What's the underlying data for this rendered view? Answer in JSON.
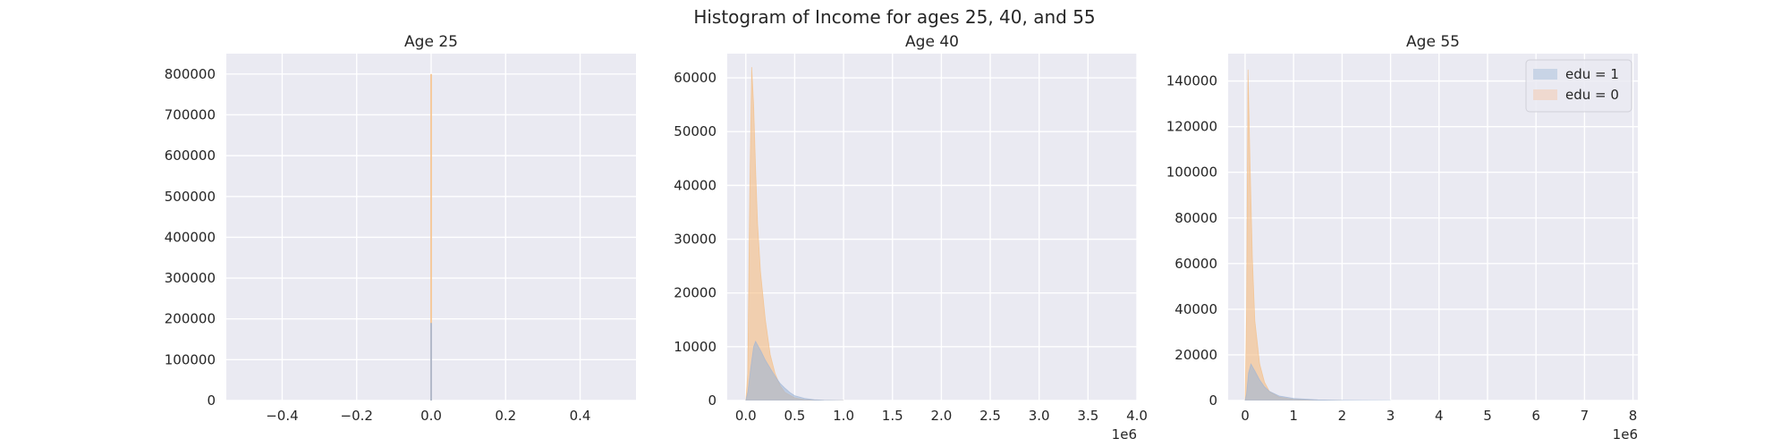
{
  "figure": {
    "title": "Histogram of Income for ages 25, 40, and 55"
  },
  "colors": {
    "background": "#eaeaf2",
    "grid": "#ffffff",
    "edu1": "#9fb5d6",
    "edu0": "#f5bd82",
    "edu1_legend": "#c8d4e6",
    "edu0_legend": "#efd9cf"
  },
  "chart_data": [
    {
      "type": "histogram",
      "title": "Age 25",
      "xlim": [
        -0.55,
        0.55
      ],
      "ylim": [
        0,
        850000
      ],
      "xticks": [
        -0.4,
        -0.2,
        0.0,
        0.2,
        0.4
      ],
      "xticklabels": [
        "−0.4",
        "−0.2",
        "0.0",
        "0.2",
        "0.4"
      ],
      "yticks": [
        0,
        100000,
        200000,
        300000,
        400000,
        500000,
        600000,
        700000,
        800000
      ],
      "yticklabels": [
        "0",
        "100000",
        "200000",
        "300000",
        "400000",
        "500000",
        "600000",
        "700000",
        "800000"
      ],
      "offset_label": "",
      "grid": true,
      "series": [
        {
          "key": "edu0",
          "bins": [
            [
              -0.002,
              0.002,
              800000
            ]
          ]
        },
        {
          "key": "edu1",
          "bins": [
            [
              -0.002,
              0.002,
              190000
            ]
          ]
        }
      ]
    },
    {
      "type": "histogram",
      "title": "Age 40",
      "xlim": [
        -0.19,
        4.0
      ],
      "ylim": [
        0,
        64500
      ],
      "xticks": [
        0.0,
        0.5,
        1.0,
        1.5,
        2.0,
        2.5,
        3.0,
        3.5,
        4.0
      ],
      "xticklabels": [
        "0.0",
        "0.5",
        "1.0",
        "1.5",
        "2.0",
        "2.5",
        "3.0",
        "3.5",
        "4.0"
      ],
      "yticks": [
        0,
        10000,
        20000,
        30000,
        40000,
        50000,
        60000
      ],
      "yticklabels": [
        "0",
        "10000",
        "20000",
        "30000",
        "40000",
        "50000",
        "60000"
      ],
      "offset_label": "1e6",
      "grid": true,
      "series": [
        {
          "key": "edu0",
          "points": [
            [
              0.0,
              0
            ],
            [
              0.02,
              5000
            ],
            [
              0.04,
              38000
            ],
            [
              0.06,
              62000
            ],
            [
              0.08,
              55000
            ],
            [
              0.1,
              43000
            ],
            [
              0.12,
              33000
            ],
            [
              0.15,
              24000
            ],
            [
              0.2,
              15000
            ],
            [
              0.25,
              8500
            ],
            [
              0.3,
              5000
            ],
            [
              0.35,
              2800
            ],
            [
              0.4,
              1500
            ],
            [
              0.5,
              500
            ],
            [
              0.6,
              150
            ],
            [
              0.8,
              20
            ],
            [
              1.0,
              0
            ]
          ]
        },
        {
          "key": "edu1",
          "points": [
            [
              0.0,
              0
            ],
            [
              0.02,
              1500
            ],
            [
              0.05,
              6000
            ],
            [
              0.08,
              10000
            ],
            [
              0.1,
              11000
            ],
            [
              0.13,
              10000
            ],
            [
              0.16,
              9000
            ],
            [
              0.2,
              7500
            ],
            [
              0.25,
              6000
            ],
            [
              0.3,
              4500
            ],
            [
              0.35,
              3200
            ],
            [
              0.4,
              2300
            ],
            [
              0.45,
              1500
            ],
            [
              0.5,
              900
            ],
            [
              0.6,
              400
            ],
            [
              0.7,
              150
            ],
            [
              0.8,
              50
            ],
            [
              1.0,
              0
            ]
          ]
        }
      ]
    },
    {
      "type": "histogram",
      "title": "Age 55",
      "xlim": [
        -0.35,
        8.1
      ],
      "ylim": [
        0,
        152000
      ],
      "xticks": [
        0,
        1,
        2,
        3,
        4,
        5,
        6,
        7,
        8
      ],
      "xticklabels": [
        "0",
        "1",
        "2",
        "3",
        "4",
        "5",
        "6",
        "7",
        "8"
      ],
      "yticks": [
        0,
        20000,
        40000,
        60000,
        80000,
        100000,
        120000,
        140000
      ],
      "yticklabels": [
        "0",
        "20000",
        "40000",
        "60000",
        "80000",
        "100000",
        "120000",
        "140000"
      ],
      "offset_label": "1e6",
      "grid": true,
      "legend": {
        "placement": "upper right",
        "entries": [
          {
            "key": "edu1",
            "label": "edu = 1"
          },
          {
            "key": "edu0",
            "label": "edu = 0"
          }
        ]
      },
      "series": [
        {
          "key": "edu0",
          "points": [
            [
              0.0,
              0
            ],
            [
              0.03,
              40000
            ],
            [
              0.06,
              145000
            ],
            [
              0.1,
              105000
            ],
            [
              0.15,
              62000
            ],
            [
              0.2,
              35000
            ],
            [
              0.3,
              16000
            ],
            [
              0.4,
              8000
            ],
            [
              0.5,
              4000
            ],
            [
              0.7,
              1500
            ],
            [
              1.0,
              500
            ],
            [
              1.5,
              100
            ],
            [
              2.0,
              0
            ]
          ]
        },
        {
          "key": "edu1",
          "points": [
            [
              0.0,
              0
            ],
            [
              0.03,
              3000
            ],
            [
              0.07,
              12000
            ],
            [
              0.12,
              16000
            ],
            [
              0.2,
              13000
            ],
            [
              0.3,
              9000
            ],
            [
              0.4,
              6000
            ],
            [
              0.5,
              4000
            ],
            [
              0.7,
              2000
            ],
            [
              1.0,
              900
            ],
            [
              1.5,
              300
            ],
            [
              2.0,
              100
            ],
            [
              3.0,
              0
            ]
          ]
        }
      ]
    }
  ]
}
